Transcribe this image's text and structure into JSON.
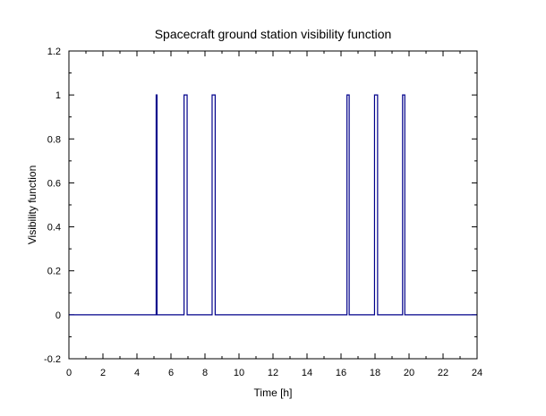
{
  "chart_data": {
    "type": "line",
    "title": "Spacecraft ground station visibility function",
    "xlabel": "Time [h]",
    "ylabel": "Visibility function",
    "xlim": [
      0,
      24
    ],
    "ylim": [
      -0.2,
      1.2
    ],
    "x_ticks": [
      0,
      2,
      4,
      6,
      8,
      10,
      12,
      14,
      16,
      18,
      20,
      22,
      24
    ],
    "x_tick_labels": [
      "0",
      "2",
      "4",
      "6",
      "8",
      "10",
      "12",
      "14",
      "16",
      "18",
      "20",
      "22",
      "24"
    ],
    "y_ticks": [
      -0.2,
      0,
      0.2,
      0.4,
      0.6,
      0.8,
      1,
      1.2
    ],
    "y_tick_labels": [
      "-0.2",
      "0",
      "0.2",
      "0.4",
      "0.6",
      "0.8",
      "1",
      "1.2"
    ],
    "grid": false,
    "line_color": "#00008b",
    "series": [
      {
        "x": [
          0,
          5.13,
          5.13,
          5.18,
          5.18,
          6.77,
          6.77,
          6.95,
          6.95,
          8.42,
          8.42,
          8.6,
          8.6,
          16.35,
          16.35,
          16.48,
          16.48,
          17.97,
          17.97,
          18.15,
          18.15,
          19.62,
          19.62,
          19.75,
          19.75,
          24
        ],
        "y": [
          0,
          0,
          1,
          1,
          0,
          0,
          1,
          1,
          0,
          0,
          1,
          1,
          0,
          0,
          1,
          1,
          0,
          0,
          1,
          1,
          0,
          0,
          1,
          1,
          0,
          0
        ]
      }
    ]
  }
}
